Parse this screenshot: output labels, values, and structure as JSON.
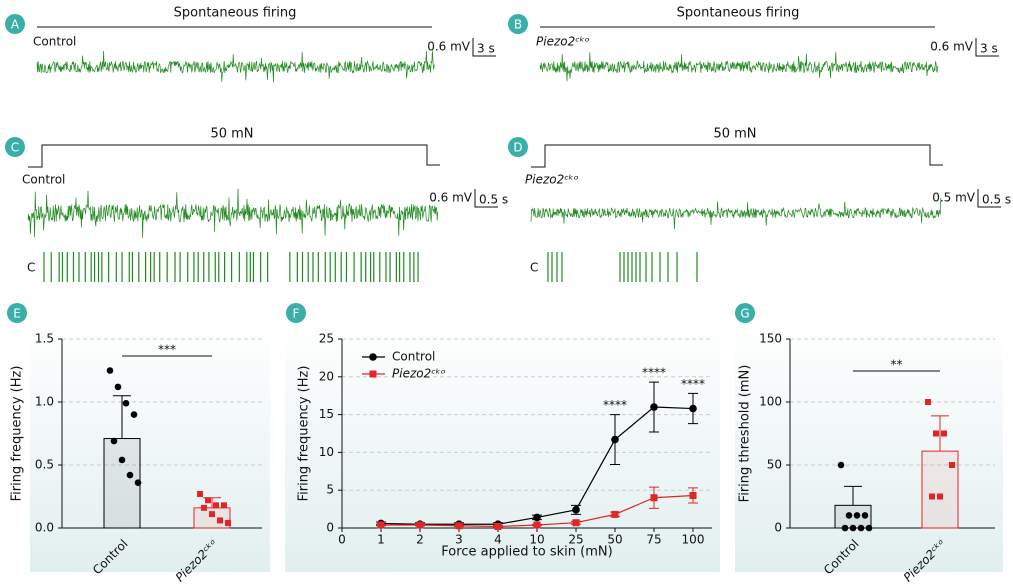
{
  "panels": [
    {
      "letter": "A",
      "title": "Spontaneous firing",
      "group": "Control",
      "scale_v": "0.6 mV",
      "scale_t": "3 s"
    },
    {
      "letter": "B",
      "title": "Spontaneous firing",
      "group": "Piezo2ᶜᵏᵒ",
      "scale_v": "0.6 mV",
      "scale_t": "3 s"
    },
    {
      "letter": "C",
      "title": "50 mN",
      "group": "Control",
      "scale_v": "0.6 mV",
      "scale_t": "0.5 s",
      "raster": "C"
    },
    {
      "letter": "D",
      "title": "50 mN",
      "group": "Piezo2ᶜᵏᵒ",
      "scale_v": "0.5 mV",
      "scale_t": "0.5 s",
      "raster": "C"
    }
  ],
  "chart_data": [
    {
      "letter": "E",
      "type": "bar",
      "y_label": "Firing frequency (Hz)",
      "categories": [
        "Control",
        "Piezo2ᶜᵏᵒ"
      ],
      "values": [
        0.71,
        0.16
      ],
      "errors": [
        0.34,
        0.08
      ],
      "points": [
        [
          1.25,
          1.12,
          0.99,
          0.9,
          0.69,
          0.54,
          0.42,
          0.36
        ],
        [
          0.27,
          0.22,
          0.18,
          0.18,
          0.16,
          0.11,
          0.06,
          0.04
        ]
      ],
      "colors": [
        "#000000",
        "#e02626"
      ],
      "significance": "***",
      "ylim": [
        0,
        1.5
      ],
      "yticks": [
        {
          "value": 0,
          "label": "0.0"
        },
        {
          "value": 0.5,
          "label": "0.5"
        },
        {
          "value": 1,
          "label": "1.0"
        },
        {
          "value": 1.5,
          "label": "1.5"
        }
      ],
      "grid": true
    },
    {
      "letter": "F",
      "type": "line",
      "x_label": "Force applied to skin (mN)",
      "y_label": "Firing frequency (Hz)",
      "categories": [
        "0",
        "1",
        "2",
        "3",
        "4",
        "10",
        "25",
        "50",
        "75",
        "100"
      ],
      "series": [
        {
          "name": "Control",
          "color": "#000000",
          "marker": "circle",
          "values": [
            null,
            0.6,
            0.5,
            0.5,
            0.5,
            1.4,
            2.4,
            11.7,
            16,
            15.8
          ],
          "errors": [
            null,
            0.2,
            0.2,
            0.2,
            0.2,
            0.3,
            0.6,
            3.3,
            3.3,
            2
          ]
        },
        {
          "name": "Piezo2ᶜᵏᵒ",
          "color": "#e02626",
          "marker": "square",
          "values": [
            null,
            0.4,
            0.4,
            0.3,
            0.2,
            0.4,
            0.7,
            1.8,
            4,
            4.3
          ],
          "errors": [
            null,
            0.1,
            0.1,
            0.1,
            0.1,
            0.1,
            0.2,
            0.3,
            1.4,
            1
          ]
        }
      ],
      "significance": [
        null,
        null,
        null,
        null,
        null,
        null,
        null,
        "****",
        "****",
        "****"
      ],
      "ylim": [
        0,
        25
      ],
      "yticks": [
        0,
        5,
        10,
        15,
        20,
        25
      ],
      "grid": true
    },
    {
      "letter": "G",
      "type": "bar",
      "y_label": "Firing threshold (mN)",
      "categories": [
        "Control",
        "Piezo2ᶜᵏᵒ"
      ],
      "values": [
        18,
        61
      ],
      "errors": [
        15,
        28
      ],
      "points": [
        [
          50,
          10,
          10,
          10,
          0,
          0,
          0,
          0
        ],
        [
          100,
          75,
          75,
          50,
          25,
          25
        ]
      ],
      "colors": [
        "#000000",
        "#e02626"
      ],
      "significance": "**",
      "ylim": [
        0,
        150
      ],
      "yticks": [
        0,
        50,
        100,
        150
      ],
      "grid": true
    }
  ]
}
